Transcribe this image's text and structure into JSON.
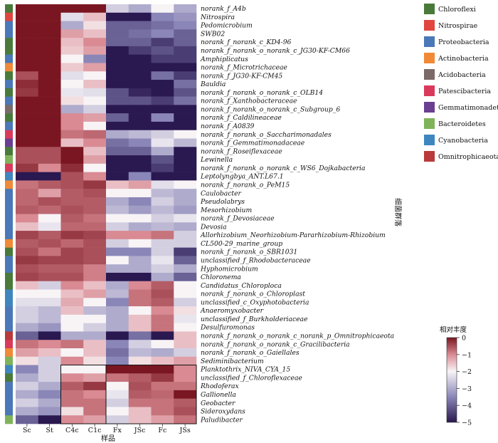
{
  "chart_data": {
    "type": "heatmap",
    "xlabel": "样品",
    "ylabel": "细菌群落",
    "columns": [
      "Sc",
      "St",
      "C4c",
      "C1c",
      "Fx",
      "JSc",
      "Fc",
      "JSs"
    ],
    "rows": [
      {
        "label": "norank_f_A4b",
        "group": "Chloroflexi",
        "values": [
          0.4,
          0.4,
          0.3,
          0.3,
          -2.5,
          -3.0,
          -2.0,
          -3.0
        ]
      },
      {
        "label": "Nitrospira",
        "group": "Nitrospirae",
        "values": [
          0.4,
          0.3,
          -2.3,
          -1.5,
          -5.0,
          -5.0,
          -3.5,
          -3.3
        ]
      },
      {
        "label": "Pedomicrobium",
        "group": "Proteobacteria",
        "values": [
          0.3,
          0.3,
          -3.0,
          -1.8,
          -4.0,
          -4.0,
          -3.8,
          -3.5
        ]
      },
      {
        "label": "SWB02",
        "group": "Proteobacteria",
        "values": [
          0.2,
          0.3,
          -1.2,
          -1.5,
          -4.0,
          -3.8,
          -3.5,
          -4.0
        ]
      },
      {
        "label": "norank_f_norank_c_KD4-96",
        "group": "Chloroflexi",
        "values": [
          0.2,
          0.2,
          -1.5,
          -1.0,
          -4.0,
          -4.0,
          -4.5,
          -4.0
        ]
      },
      {
        "label": "norank_f_norank_o_norank_c_JG30-KF-CM66",
        "group": "Chloroflexi",
        "values": [
          0.2,
          0.3,
          -1.6,
          -1.2,
          -5.0,
          -4.5,
          -4.2,
          -4.5
        ]
      },
      {
        "label": "Amphiplicatus",
        "group": "Proteobacteria",
        "values": [
          0.1,
          0.2,
          -2.0,
          -3.5,
          -5.0,
          -5.0,
          -4.5,
          -4.5
        ]
      },
      {
        "label": "norank_f_Microtrichaceae",
        "group": "Actinobacteria",
        "values": [
          0.2,
          0.2,
          -1.6,
          -1.2,
          -5.0,
          -5.0,
          -5.0,
          -5.0
        ]
      },
      {
        "label": "norank_f_JG30-KF-CM45",
        "group": "Chloroflexi",
        "values": [
          -0.5,
          0.2,
          -2.3,
          -2.0,
          -5.0,
          -5.0,
          -3.8,
          -4.5
        ]
      },
      {
        "label": "Bauldia",
        "group": "Proteobacteria",
        "values": [
          -0.2,
          0.3,
          -2.0,
          -1.5,
          -5.0,
          -5.0,
          -5.0,
          -3.8
        ]
      },
      {
        "label": "norank_f_norank_o_norank_c_OLB14",
        "group": "Chloroflexi",
        "values": [
          -0.3,
          0.2,
          -2.2,
          -2.3,
          -4.2,
          -4.8,
          -5.0,
          -4.2
        ]
      },
      {
        "label": "norank_f_Xanthobacteraceae",
        "group": "Proteobacteria",
        "values": [
          0.0,
          0.2,
          -1.8,
          -2.0,
          -4.2,
          -4.2,
          -4.5,
          -3.8
        ]
      },
      {
        "label": "norank_f_norank_o_norank_c_Subgroup_6",
        "group": "Acidobacteria",
        "values": [
          0.1,
          0.4,
          -3.0,
          -2.5,
          -5.0,
          -5.0,
          -5.0,
          -5.0
        ]
      },
      {
        "label": "norank_f_Caldilineaceae",
        "group": "Chloroflexi",
        "values": [
          0.1,
          0.3,
          -1.0,
          -1.2,
          -4.0,
          -5.0,
          -3.5,
          -5.0
        ]
      },
      {
        "label": "norank_f_A0839",
        "group": "Proteobacteria",
        "values": [
          0.3,
          0.3,
          -1.0,
          -2.0,
          -5.0,
          -5.0,
          -5.0,
          -5.0
        ]
      },
      {
        "label": "norank_f_norank_o_Saccharimonadales",
        "group": "Patescibacteria",
        "values": [
          0.2,
          0.3,
          -0.8,
          -0.7,
          -3.0,
          -2.8,
          -2.5,
          -2.0
        ]
      },
      {
        "label": "norank_f_Gemmatimonadaceae",
        "group": "Gemmatimonadetes",
        "values": [
          0.2,
          0.3,
          -1.5,
          -1.0,
          -3.8,
          -3.5,
          -2.2,
          -2.8
        ]
      },
      {
        "label": "norank_f_Roseiflexaceae",
        "group": "Chloroflexi",
        "values": [
          -0.5,
          -0.5,
          0.1,
          -1.5,
          -4.0,
          -4.0,
          -3.0,
          -5.0
        ]
      },
      {
        "label": "Lewinella",
        "group": "Bacteroidetes",
        "values": [
          -0.5,
          -0.5,
          0.2,
          -1.2,
          -5.0,
          -5.0,
          -4.2,
          -5.0
        ]
      },
      {
        "label": "norank_f_norank_o_norank_c_WS6_Dojkabacteria",
        "group": "Patescibacteria",
        "values": [
          -0.3,
          -1.0,
          -0.2,
          -2.0,
          -5.0,
          -5.0,
          -4.5,
          -5.0
        ]
      },
      {
        "label": "Leptolyngbya_ANT.L67.1",
        "group": "Cyanobacteria",
        "values": [
          -5.0,
          -5.0,
          -0.5,
          -1.0,
          -5.0,
          -3.5,
          -5.0,
          -5.0
        ]
      },
      {
        "label": "norank_f_norank_o_PeM15",
        "group": "Actinobacteria",
        "values": [
          -0.8,
          -0.6,
          -0.5,
          -0.3,
          -1.5,
          -1.2,
          -2.3,
          -2.0
        ]
      },
      {
        "label": "Caulobacter",
        "group": "Proteobacteria",
        "values": [
          -0.7,
          -1.2,
          -0.6,
          -0.5,
          -2.0,
          -2.0,
          -2.8,
          -3.0
        ]
      },
      {
        "label": "Pseudolabrys",
        "group": "Proteobacteria",
        "values": [
          -0.7,
          -0.5,
          -0.6,
          -0.6,
          -3.0,
          -3.5,
          -2.5,
          -3.0
        ]
      },
      {
        "label": "Mesorhizobium",
        "group": "Proteobacteria",
        "values": [
          -0.6,
          -0.7,
          -0.5,
          -0.6,
          -2.8,
          -3.2,
          -2.8,
          -3.2
        ]
      },
      {
        "label": "norank_f_Devosiaceae",
        "group": "Proteobacteria",
        "values": [
          -1.0,
          -2.0,
          -0.6,
          -0.8,
          -2.0,
          -2.0,
          -2.5,
          -2.2
        ]
      },
      {
        "label": "Devosia",
        "group": "Proteobacteria",
        "values": [
          -1.5,
          -2.2,
          -0.7,
          -0.7,
          -2.5,
          -3.0,
          -2.8,
          -3.0
        ]
      },
      {
        "label": "Allorhizobium_Neorhizobium-Pararhizobium-Rhizobium",
        "group": "Proteobacteria",
        "values": [
          -0.4,
          -0.6,
          -0.3,
          -0.4,
          -1.0,
          -1.0,
          -0.8,
          -2.5
        ]
      },
      {
        "label": "CL500-29_marine_group",
        "group": "Actinobacteria",
        "values": [
          -0.6,
          -0.5,
          -0.7,
          -0.5,
          -2.5,
          -2.0,
          -2.5,
          -2.5
        ]
      },
      {
        "label": "norank_f_norank_o_SBR1031",
        "group": "Chloroflexi",
        "values": [
          -0.5,
          -0.8,
          -0.4,
          -0.5,
          -3.5,
          -3.5,
          -2.5,
          -4.5
        ]
      },
      {
        "label": "unclassified_f_Rhodobacteraceae",
        "group": "Proteobacteria",
        "values": [
          -0.3,
          -0.4,
          -0.4,
          -0.5,
          -2.0,
          -3.0,
          -2.2,
          -4.0
        ]
      },
      {
        "label": "Hyphomicrobium",
        "group": "Proteobacteria",
        "values": [
          -0.5,
          -0.6,
          -0.6,
          -0.9,
          -3.0,
          -3.0,
          -2.5,
          -3.0
        ]
      },
      {
        "label": "Chloronema",
        "group": "Chloroflexi",
        "values": [
          -0.4,
          -0.5,
          -0.5,
          -0.9,
          -5.0,
          -5.0,
          -3.0,
          -4.0
        ]
      },
      {
        "label": "Candidatus_Chloroploca",
        "group": "Chloroflexi",
        "values": [
          -1.5,
          -2.5,
          -1.0,
          -1.5,
          -3.0,
          -1.0,
          -0.6,
          -2.0
        ]
      },
      {
        "label": "norank_f_norank_o_Chloroplast",
        "group": "Cyanobacteria",
        "values": [
          -2.0,
          -2.0,
          -1.5,
          -1.2,
          -2.8,
          -0.8,
          -0.5,
          -2.0
        ]
      },
      {
        "label": "unclassified_c_Oxyphotobacteria",
        "group": "Cyanobacteria",
        "values": [
          -2.3,
          -2.3,
          -1.3,
          -2.0,
          -3.5,
          -0.8,
          -0.6,
          -2.5
        ]
      },
      {
        "label": "Anaeromyxobacter",
        "group": "Proteobacteria",
        "values": [
          -2.5,
          -2.8,
          -1.5,
          -2.8,
          -3.0,
          -2.0,
          -1.0,
          -1.8
        ]
      },
      {
        "label": "unclassified_f_Burkholderiaceae",
        "group": "Proteobacteria",
        "values": [
          -2.5,
          -2.8,
          -2.0,
          -2.0,
          -3.0,
          -1.5,
          -0.8,
          -2.2
        ]
      },
      {
        "label": "Desulfuromonas",
        "group": "Proteobacteria",
        "values": [
          -3.0,
          -3.3,
          -2.0,
          -2.5,
          -3.0,
          -1.5,
          -0.8,
          -2.0
        ]
      },
      {
        "label": "norank_f_norank_o_norank_c_norank_p_Omnitrophicaeota",
        "group": "Omnitrophicaeota",
        "values": [
          -4.0,
          -5.0,
          -3.0,
          -3.0,
          -5.0,
          -3.8,
          -5.0,
          -1.5
        ]
      },
      {
        "label": "norank_f_norank_o_norank_c_Gracilibacteria",
        "group": "Patescibacteria",
        "values": [
          -0.8,
          -1.0,
          -0.8,
          -1.5,
          -3.5,
          -2.5,
          -2.0,
          -1.5
        ]
      },
      {
        "label": "norank_f_norank_o_Gaiellales",
        "group": "Actinobacteria",
        "values": [
          -1.2,
          -1.5,
          -2.0,
          -1.5,
          -3.8,
          -2.8,
          -3.0,
          -2.5
        ]
      },
      {
        "label": "Sediminibacterium",
        "group": "Bacteroidetes",
        "values": [
          -1.8,
          -2.5,
          -1.0,
          -1.8,
          -3.5,
          -1.8,
          -1.5,
          -1.2
        ]
      },
      {
        "label": "Planktothrix_NIVA_CYA_15",
        "group": "Cyanobacteria",
        "values": [
          -3.5,
          -2.5,
          -2.0,
          -2.0,
          0.2,
          0.3,
          0.0,
          -1.0
        ]
      },
      {
        "label": "unclassified_f_Chloroflexaceae",
        "group": "Chloroflexi",
        "values": [
          -3.0,
          -2.5,
          -1.0,
          -1.2,
          -0.8,
          -0.6,
          -0.3,
          -1.0
        ]
      },
      {
        "label": "Rhodoferax",
        "group": "Proteobacteria",
        "values": [
          -2.5,
          -3.0,
          -0.6,
          -0.3,
          -2.0,
          -0.5,
          -0.8,
          -0.8
        ]
      },
      {
        "label": "Gallionella",
        "group": "Proteobacteria",
        "values": [
          -3.0,
          -3.5,
          -0.8,
          -1.0,
          -2.2,
          -0.6,
          -0.7,
          0.1
        ]
      },
      {
        "label": "Geobacter",
        "group": "Proteobacteria",
        "values": [
          -2.5,
          -3.0,
          -0.8,
          -0.8,
          -2.5,
          -0.8,
          -0.8,
          -0.6
        ]
      },
      {
        "label": "Sideroxydans",
        "group": "Proteobacteria",
        "values": [
          -3.0,
          -3.3,
          -1.8,
          -0.8,
          -2.0,
          -1.5,
          -0.8,
          -0.5
        ]
      },
      {
        "label": "Paludibacter",
        "group": "Bacteroidetes",
        "values": [
          -4.0,
          -5.0,
          -1.0,
          -1.2,
          -2.5,
          -1.5,
          -1.2,
          -0.8
        ]
      }
    ],
    "legend": {
      "position": "top-right",
      "items": [
        {
          "name": "Chloroflexi",
          "color": "#4a7a3a"
        },
        {
          "name": "Nitrospirae",
          "color": "#e0453f"
        },
        {
          "name": "Proteobacteria",
          "color": "#4a78b8"
        },
        {
          "name": "Actinobacteria",
          "color": "#f08a36"
        },
        {
          "name": "Acidobacteria",
          "color": "#7a6a68"
        },
        {
          "name": "Patescibacteria",
          "color": "#d93a5c"
        },
        {
          "name": "Gemmatimonadetes",
          "color": "#6a3f92"
        },
        {
          "name": "Bacteroidetes",
          "color": "#7fb35a"
        },
        {
          "name": "Cyanobacteria",
          "color": "#3f86bf"
        },
        {
          "name": "Omnitrophicaeota",
          "color": "#b83a3a"
        }
      ]
    },
    "colorbar": {
      "title": "相对丰度",
      "ticks": [
        0,
        -1,
        -2,
        -3,
        -4,
        -5
      ],
      "range": [
        -5,
        0
      ],
      "colors": {
        "high": "#7a1621",
        "mid": "#f8f4f6",
        "low": "#2a1850"
      }
    }
  }
}
